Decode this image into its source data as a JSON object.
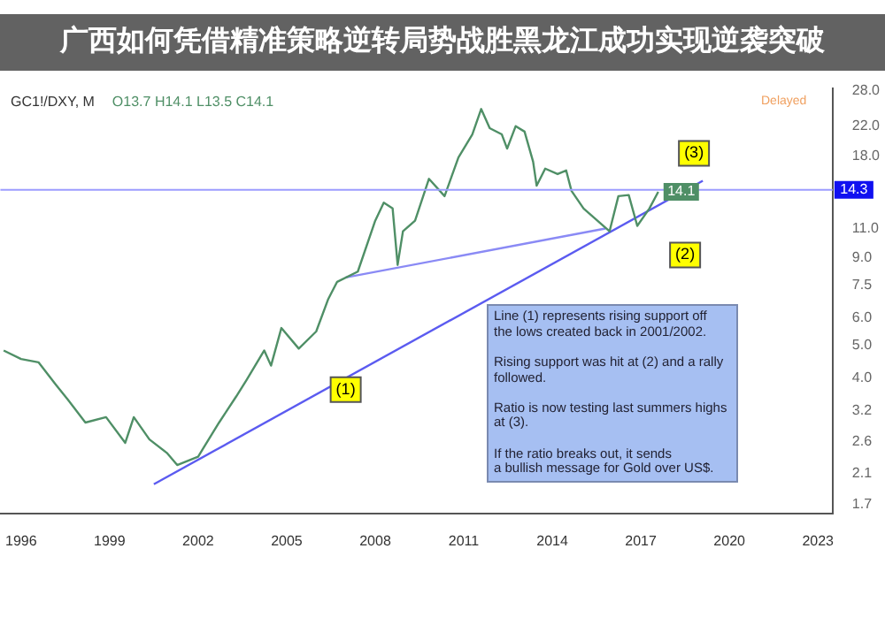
{
  "chart_data": {
    "type": "line",
    "title": "广西如何凭借精准策略逆转局势战胜黑龙江成功实现逆袭突破",
    "subtitle": "GC1!/DXY, M",
    "series": [
      {
        "color": "#4f8f66",
        "x": [
          1995.41,
          1996.0,
          1996.59,
          1997.18,
          1997.59,
          1998.18,
          1998.88,
          1999.53,
          1999.82,
          2000.35,
          2000.94,
          2001.29,
          2002.0,
          2002.71,
          2003.29,
          2003.65,
          2004.24,
          2004.47,
          2004.82,
          2005.41,
          2006.0,
          2006.41,
          2006.71,
          2007.41,
          2008.0,
          2008.29,
          2008.59,
          2008.76,
          2008.94,
          2009.35,
          2009.82,
          2010.35,
          2010.82,
          2011.29,
          2011.59,
          2011.88,
          2012.29,
          2012.47,
          2012.76,
          2013.06,
          2013.35,
          2013.47,
          2013.76,
          2014.18,
          2014.47,
          2014.65,
          2015.06,
          2015.53,
          2015.94,
          2016.24,
          2016.59,
          2016.88,
          2017.29,
          2017.59
        ],
        "values": [
          4.82,
          4.55,
          4.45,
          3.82,
          3.45,
          2.96,
          3.07,
          2.58,
          3.07,
          2.64,
          2.41,
          2.22,
          2.35,
          2.96,
          3.53,
          3.96,
          4.82,
          4.35,
          5.61,
          4.88,
          5.48,
          6.83,
          7.67,
          8.22,
          11.6,
          13.1,
          12.6,
          8.6,
          10.8,
          11.6,
          15.4,
          13.7,
          17.8,
          20.8,
          24.7,
          21.7,
          20.8,
          18.9,
          22.0,
          21.2,
          17.3,
          14.7,
          16.5,
          15.9,
          16.3,
          14.2,
          12.6,
          11.6,
          10.8,
          13.7,
          13.8,
          11.2,
          12.6,
          14.1
        ],
        "value_labels": [
          null,
          null,
          null,
          null,
          null,
          null,
          null,
          null,
          null,
          null,
          null,
          null,
          null,
          null,
          null,
          null,
          null,
          null,
          null,
          null,
          null,
          null,
          null,
          null,
          null,
          null,
          null,
          null,
          null,
          null,
          null,
          null,
          null,
          null,
          null,
          null,
          null,
          null,
          null,
          null,
          null,
          null,
          null,
          null,
          null,
          null,
          null,
          null,
          null,
          null,
          null,
          null,
          null,
          "14.1"
        ]
      },
      {
        "type": "line",
        "color": "#5b5bf0",
        "x": [
          2000.5,
          2019.1
        ],
        "values": [
          1.95,
          15.2
        ]
      },
      {
        "type": "line",
        "color": "#8a8af5",
        "x": [
          2007.0,
          2015.8
        ],
        "values": [
          7.9,
          11.0
        ]
      }
    ],
    "xlim": [
      1995.3,
      2023.5
    ],
    "xticks": [
      1996,
      1999,
      2002,
      2005,
      2008,
      2011,
      2014,
      2017,
      2020,
      2023
    ],
    "ylim": [
      1.6,
      28.4
    ],
    "log": true,
    "yticks": [
      {
        "value": 1.7,
        "label": "1.7"
      },
      {
        "value": 2.1,
        "label": "2.1"
      },
      {
        "value": 2.6,
        "label": "2.6"
      },
      {
        "value": 3.2,
        "label": "3.2"
      },
      {
        "value": 4,
        "label": "4.0"
      },
      {
        "value": 5,
        "label": "5.0"
      },
      {
        "value": 6,
        "label": "6.0"
      },
      {
        "value": 7.5,
        "label": "7.5"
      },
      {
        "value": 9,
        "label": "9.0"
      },
      {
        "value": 11,
        "label": "11.0"
      },
      {
        "value": 18,
        "label": "18.0"
      },
      {
        "value": 22,
        "label": "22.0"
      },
      {
        "value": 28,
        "label": "28.0"
      }
    ],
    "ref_lines": [
      {
        "axis": "y",
        "value": 14.3,
        "label": "14.3",
        "color": "#9c9cff"
      }
    ],
    "grid": false,
    "legend": false,
    "marker": "none",
    "line_style": "solid",
    "annotations": [
      "O13.7 H14.1 L13.5 C14.1",
      "Delayed",
      "Line (1) represents rising support off\nthe lows created back in 2001/2002.\n\nRising support was hit at (2) and a rally\nfollowed.\n\nRatio is now testing last summers highs\nat (3).\n\nIf the ratio breaks out, it sends\na bullish message for Gold over US$.",
      {
        "text": "(1)",
        "x": 2007.0,
        "y": 3.7
      },
      {
        "text": "(2)",
        "x": 2018.5,
        "y": 9.2
      },
      {
        "text": "(3)",
        "x": 2018.8,
        "y": 18.3
      }
    ]
  }
}
